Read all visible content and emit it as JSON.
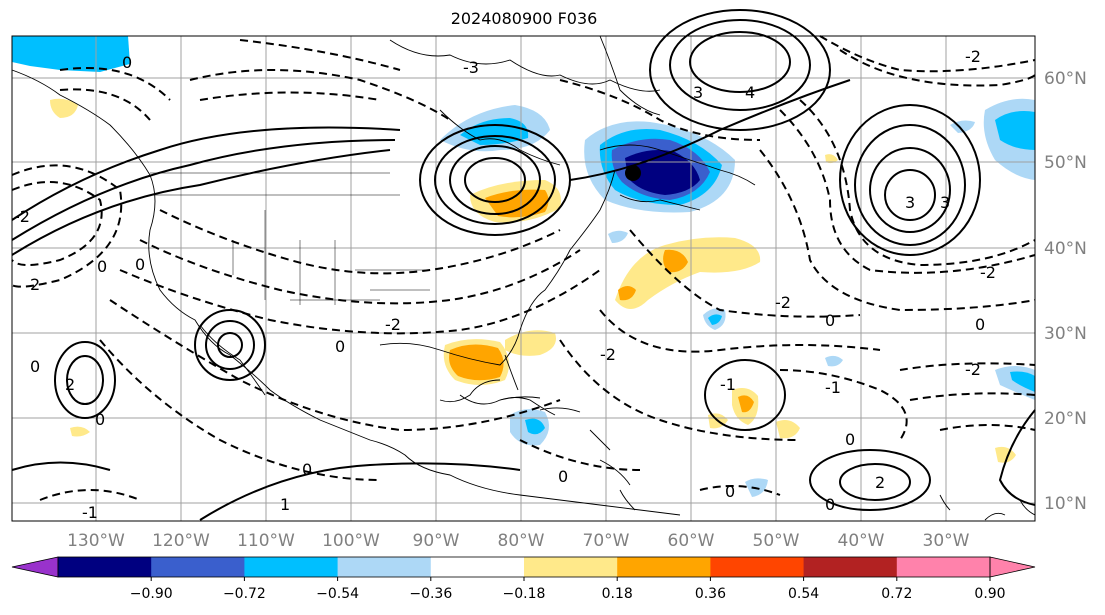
{
  "title": "2024080900 F036",
  "map": {
    "lon_labels": [
      "130°W",
      "120°W",
      "110°W",
      "100°W",
      "90°W",
      "80°W",
      "70°W",
      "60°W",
      "50°W",
      "40°W",
      "30°W"
    ],
    "lat_labels": [
      "60°N",
      "50°N",
      "40°N",
      "30°N",
      "20°N",
      "10°N"
    ],
    "grid": true,
    "gridline_color": "#a0a0a0"
  },
  "contour_labels": [
    "-3",
    "-2",
    "-1",
    "0",
    "1",
    "2",
    "3",
    "4"
  ],
  "colorbar": {
    "ticks": [
      "−0.90",
      "−0.72",
      "−0.54",
      "−0.36",
      "−0.18",
      "0.18",
      "0.36",
      "0.54",
      "0.72",
      "0.90"
    ],
    "colors": {
      "below_min": "#9932cc",
      "bins": [
        "#000080",
        "#3a5fcd",
        "#00bfff",
        "#add8f6",
        "#ffffff",
        "#ffe98a",
        "#ffa500",
        "#ff4500",
        "#b22222",
        "#ff82ab"
      ],
      "above_max": "#ff82ab"
    }
  }
}
